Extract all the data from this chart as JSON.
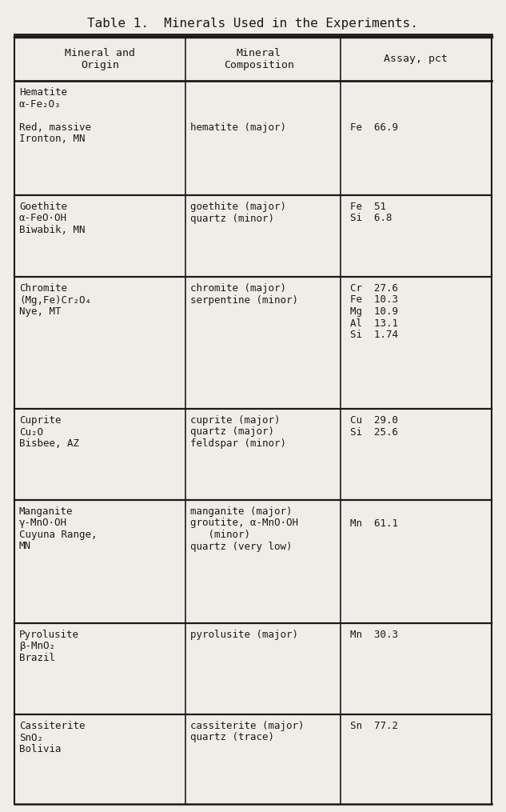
{
  "title": "Table 1.  Minerals Used in the Experiments.",
  "bg_color": "#f0ede8",
  "line_color": "#1a1a1a",
  "text_color": "#1a1a1a",
  "font_size": 9.0,
  "header_font_size": 9.5,
  "title_font_size": 11.5,
  "col_headers": [
    "Mineral and\nOrigin",
    "Mineral\nComposition",
    "Assay, pct"
  ],
  "rows": [
    {
      "col0": [
        "Hematite",
        "α-Fe₂O₃",
        "",
        "Red, massive",
        "Ironton, MN"
      ],
      "col1": [
        "",
        "",
        "",
        "hematite (major)",
        ""
      ],
      "col2": [
        "",
        "",
        "",
        "Fe  66.9",
        ""
      ],
      "row_lines": 5
    },
    {
      "col0": [
        "Goethite",
        "α-FeO·OH",
        "Biwabik, MN"
      ],
      "col1": [
        "goethite (major)",
        "quartz (minor)",
        ""
      ],
      "col2": [
        "Fe  51",
        "Si  6.8",
        ""
      ],
      "row_lines": 3
    },
    {
      "col0": [
        "Chromite",
        "(Mg,Fe)Cr₂O₄",
        "Nye, MT"
      ],
      "col1": [
        "chromite (major)",
        "serpentine (minor)",
        "",
        "",
        ""
      ],
      "col2": [
        "Cr  27.6",
        "Fe  10.3",
        "Mg  10.9",
        "Al  13.1",
        "Si  1.74"
      ],
      "row_lines": 5
    },
    {
      "col0": [
        "Cuprite",
        "Cu₂O",
        "Bisbee, AZ"
      ],
      "col1": [
        "cuprite (major)",
        "quartz (major)",
        "feldspar (minor)"
      ],
      "col2": [
        "Cu  29.0",
        "Si  25.6",
        ""
      ],
      "row_lines": 3
    },
    {
      "col0": [
        "Manganite",
        "γ-MnO·OH",
        "Cuyuna Range,",
        "MN"
      ],
      "col1": [
        "manganite (major)",
        "groutite, α-MnO·OH",
        "   (minor)",
        "quartz (very low)"
      ],
      "col2": [
        "",
        "Mn  61.1",
        "",
        ""
      ],
      "row_lines": 4
    },
    {
      "col0": [
        "Pyrolusite",
        "β-MnO₂",
        "Brazil"
      ],
      "col1": [
        "pyrolusite (major)",
        "",
        ""
      ],
      "col2": [
        "Mn  30.3",
        "",
        ""
      ],
      "row_lines": 3
    },
    {
      "col0": [
        "Cassiterite",
        "SnO₂",
        "Bolivia"
      ],
      "col1": [
        "cassiterite (major)",
        "quartz (trace)"
      ],
      "col2": [
        "Sn  77.2",
        ""
      ],
      "row_lines": 3
    }
  ]
}
